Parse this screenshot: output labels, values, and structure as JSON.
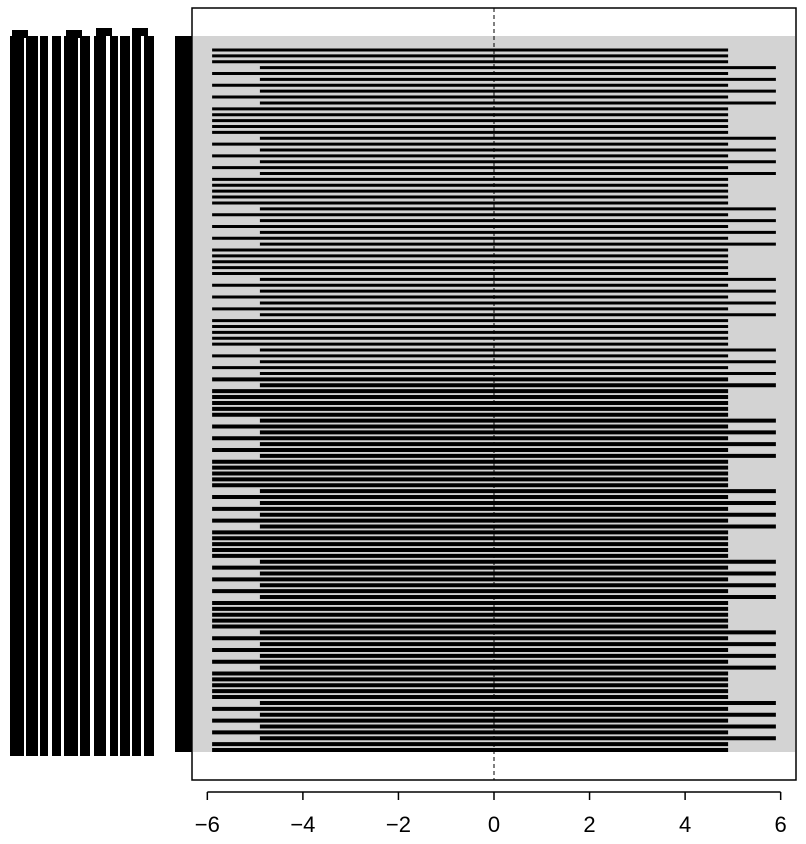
{
  "chart_data": {
    "type": "forest",
    "title": "",
    "xlabel": "",
    "ylabel": "",
    "xlim": [
      -6.3,
      6.3
    ],
    "x_ticks": [
      -6,
      -4,
      -2,
      0,
      2,
      4,
      6
    ],
    "x_tick_labels": [
      "−6",
      "−4",
      "−2",
      "0",
      "2",
      "4",
      "6"
    ],
    "reference_line_x": 0,
    "reference_line_style": "dashed",
    "row_labels_legible": false,
    "ci_end_pattern": [
      [
        -5.9,
        4.9
      ],
      [
        -5.9,
        4.9
      ],
      [
        -5.9,
        4.9
      ],
      [
        -4.9,
        5.9
      ],
      [
        -5.9,
        4.9
      ],
      [
        -4.9,
        5.9
      ],
      [
        -5.9,
        4.9
      ],
      [
        -4.9,
        5.9
      ],
      [
        -5.9,
        4.9
      ],
      [
        -4.9,
        5.9
      ],
      [
        -5.9,
        4.9
      ],
      [
        -5.9,
        4.9
      ]
    ],
    "colors": {
      "panel_background": "#d3d3d3",
      "label_band": "#000000",
      "interval": "#000000",
      "reference_line": "#000000"
    }
  }
}
